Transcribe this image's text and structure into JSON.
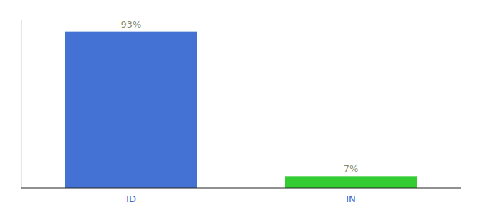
{
  "chart_data": {
    "type": "bar",
    "categories": [
      "ID",
      "IN"
    ],
    "values": [
      93,
      7
    ],
    "value_labels": [
      "93%",
      "7%"
    ],
    "colors": [
      "#4472d4",
      "#33cc33"
    ],
    "ylim": [
      0,
      100
    ],
    "data_labels": true,
    "tick_labels": "x"
  }
}
